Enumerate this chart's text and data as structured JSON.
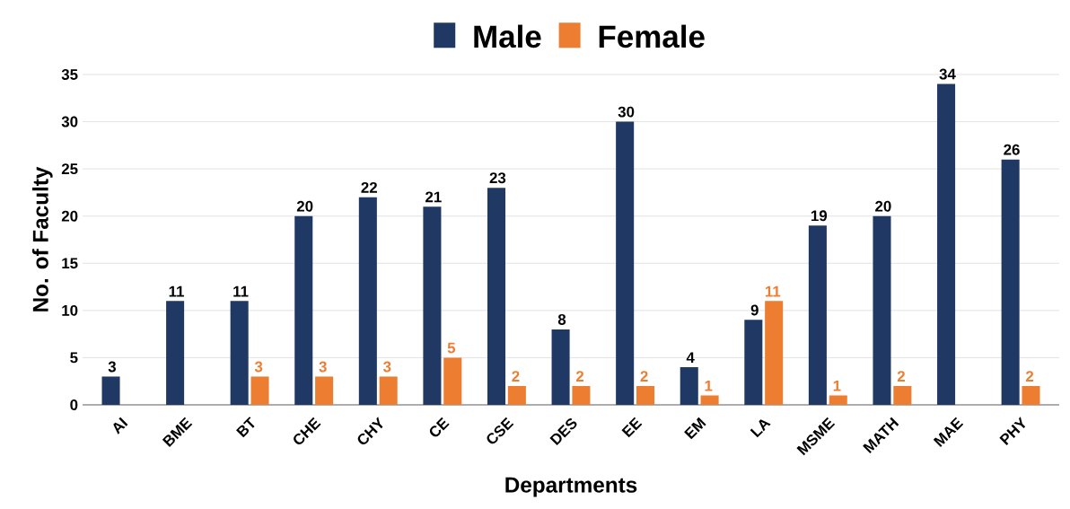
{
  "chart_data": {
    "type": "bar",
    "xlabel": "Departments",
    "ylabel": "No. of Faculty",
    "categories": [
      "AI",
      "BME",
      "BT",
      "CHE",
      "CHY",
      "CE",
      "CSE",
      "DES",
      "EE",
      "EM",
      "LA",
      "MSME",
      "MATH",
      "MAE",
      "PHY"
    ],
    "series": [
      {
        "name": "Male",
        "color": "#1f3864",
        "values": [
          3,
          11,
          11,
          20,
          22,
          21,
          23,
          8,
          30,
          4,
          9,
          19,
          20,
          34,
          26
        ]
      },
      {
        "name": "Female",
        "color": "#ed7d31",
        "values": [
          null,
          null,
          3,
          3,
          3,
          5,
          2,
          2,
          2,
          1,
          11,
          1,
          2,
          null,
          2
        ]
      }
    ],
    "ylim": [
      0,
      35
    ],
    "yticks": [
      0,
      5,
      10,
      15,
      20,
      25,
      30,
      35
    ],
    "grid": "y",
    "legend": "top",
    "data_labels": true
  }
}
